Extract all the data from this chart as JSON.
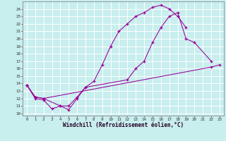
{
  "xlabel": "Windchill (Refroidissement éolien,°C)",
  "background_color": "#c8eeee",
  "line_color": "#990099",
  "grid_color": "#ffffff",
  "xlim": [
    0,
    23
  ],
  "ylim": [
    10,
    24.5
  ],
  "xticks": [
    0,
    1,
    2,
    3,
    4,
    5,
    6,
    7,
    8,
    9,
    10,
    11,
    12,
    13,
    14,
    15,
    16,
    17,
    18,
    19,
    20,
    21,
    22,
    23
  ],
  "yticks": [
    10,
    11,
    12,
    13,
    14,
    15,
    16,
    17,
    18,
    19,
    20,
    21,
    22,
    23,
    24
  ],
  "curves": [
    {
      "x": [
        0,
        1,
        2,
        3,
        4,
        5,
        6,
        7,
        8,
        9,
        10,
        11,
        12,
        13,
        14,
        15,
        16,
        17,
        18,
        19
      ],
      "y": [
        13.8,
        12.0,
        11.8,
        10.6,
        11.0,
        10.5,
        12.0,
        13.5,
        14.3,
        16.5,
        19.0,
        21.0,
        22.0,
        23.0,
        23.5,
        24.2,
        24.5,
        24.0,
        23.0,
        21.5
      ]
    },
    {
      "x": [
        0,
        1,
        2,
        4,
        5,
        6,
        7,
        12,
        13,
        14,
        15,
        16,
        17,
        18,
        19,
        20,
        22
      ],
      "y": [
        13.8,
        12.2,
        12.0,
        11.0,
        11.0,
        12.2,
        13.5,
        14.5,
        16.0,
        17.0,
        19.5,
        21.5,
        23.0,
        23.5,
        20.0,
        19.5,
        17.0
      ]
    },
    {
      "x": [
        0,
        1,
        2,
        22,
        23
      ],
      "y": [
        13.8,
        12.2,
        12.0,
        16.2,
        16.5
      ]
    }
  ]
}
